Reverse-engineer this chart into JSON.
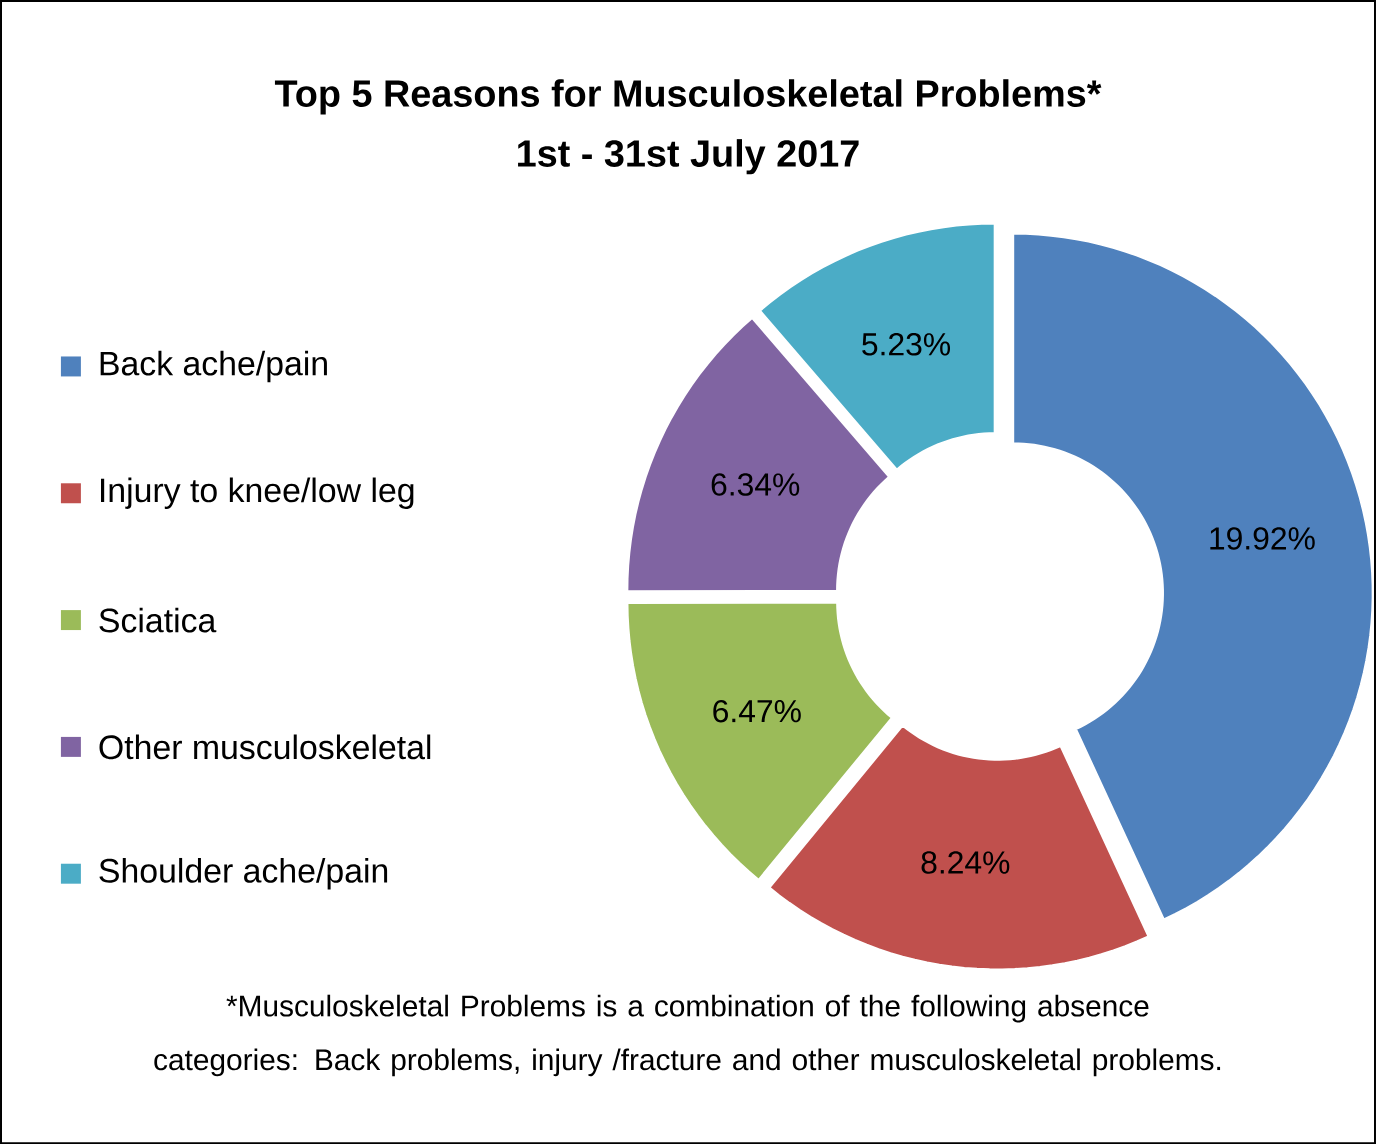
{
  "chart_data": {
    "type": "donut",
    "title": "Top 5 Reasons for Musculoskeletal Problems*",
    "subtitle": "1st - 31st July 2017",
    "categories": [
      "Back ache/pain",
      "Injury to knee/low leg",
      "Sciatica",
      "Other musculoskeletal",
      "Shoulder ache/pain"
    ],
    "values": [
      19.92,
      8.24,
      6.47,
      6.34,
      5.23
    ],
    "value_labels": [
      "19.92%",
      "8.24%",
      "6.47%",
      "6.34%",
      "5.23%"
    ],
    "colors": [
      "#4f81bd",
      "#c0504d",
      "#9bbb59",
      "#8064a2",
      "#4bacc6"
    ],
    "legend": "left",
    "annotations": [
      "*Musculoskeletal Problems is a combination of the following absence categories: Back problems, injury /fracture and other musculoskeletal problems."
    ]
  }
}
